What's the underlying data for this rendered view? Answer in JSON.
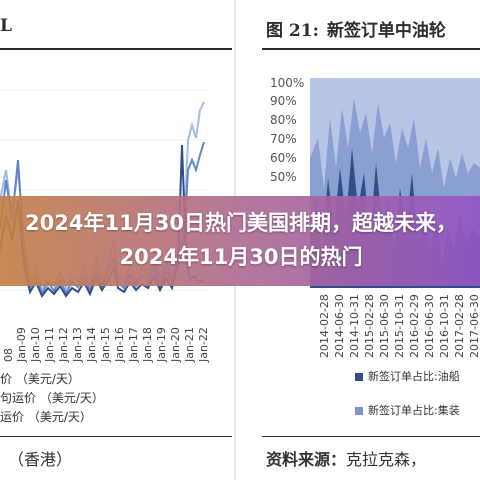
{
  "overlay": {
    "headline": "2024年11月30日热门美国排期，超越未来，2024年11月30日的热门",
    "banner_colors": [
      "#c48046",
      "#9356c5"
    ]
  },
  "left_panel": {
    "header_fragment": "L",
    "x_ticks": [
      "08",
      "Jan-09",
      "Jan-10",
      "Jan-11",
      "Jan-12",
      "Jan-13",
      "Jan-14",
      "Jan-15",
      "Jan-16",
      "Jan-17",
      "Jan-18",
      "Jan-19",
      "Jan-20",
      "Jan-21",
      "Jan-22"
    ],
    "legend": [
      "价 （美元/天）",
      "句运价 （美元/天）",
      "运价 （美元/天）"
    ],
    "source": "（香港）",
    "line_colors": [
      "#2e4f8c",
      "#5f86c7",
      "#9fbde8"
    ]
  },
  "right_panel": {
    "figure_number": "图 21:",
    "figure_title": "新签订单中油轮",
    "y_ticks": [
      "100%",
      "90%",
      "80%",
      "70%",
      "60%",
      "50%"
    ],
    "x_ticks": [
      "2014-02-28",
      "2014-06-30",
      "2014-10-31",
      "2015-02-28",
      "2015-06-30",
      "2015-10-31",
      "2016-02-29",
      "2016-06-30",
      "2016-10-31",
      "2017-02-28",
      "2017-06-30"
    ],
    "legend": [
      {
        "label": "新签订单占比:油船",
        "color": "#2f4e8a"
      },
      {
        "label": "新签订单占比:集装",
        "color": "#7f96c9"
      }
    ],
    "source_label": "资料来源：",
    "source_value": "克拉克森，",
    "area_colors": [
      "#2f4e8a",
      "#8aa0d2",
      "#b8c6e6"
    ]
  }
}
